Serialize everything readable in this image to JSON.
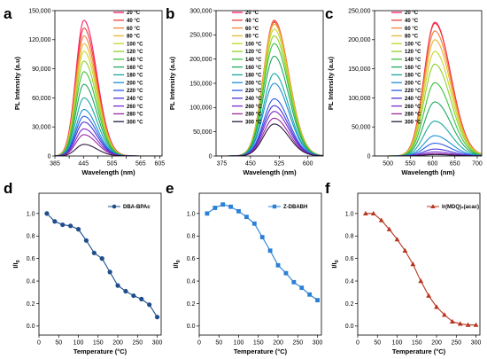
{
  "chart_data": [
    {
      "id": "a",
      "type": "line",
      "letter": "a",
      "xlabel": "Wavelength (nm)",
      "ylabel": "PL Intensity (a.u)",
      "xlim": [
        385,
        610
      ],
      "ylim": [
        0,
        150000
      ],
      "xticks": [
        385,
        415,
        445,
        475,
        505,
        535,
        565,
        595
      ],
      "xtick_labels": [
        "385",
        "",
        "445",
        "",
        "505",
        "",
        "565",
        ""
      ],
      "xtick_labels_extra": {
        "605": "605"
      },
      "yticks": [
        0,
        30000,
        60000,
        90000,
        120000,
        150000
      ],
      "ytick_labels": [
        "0",
        "30,000",
        "60,000",
        "90,000",
        "120,000",
        "150,000"
      ],
      "peak_x": 446,
      "sigma_left": 17,
      "sigma_right": 27,
      "series": [
        {
          "name": "20 °C",
          "color": "#ff1a66",
          "peak": 140000
        },
        {
          "name": "40 °C",
          "color": "#f23a3a",
          "peak": 132000
        },
        {
          "name": "60 °C",
          "color": "#f2803a",
          "peak": 124000
        },
        {
          "name": "80 °C",
          "color": "#e8b830",
          "peak": 116000
        },
        {
          "name": "100 °C",
          "color": "#c6d62a",
          "peak": 108000
        },
        {
          "name": "120 °C",
          "color": "#8fd12a",
          "peak": 98000
        },
        {
          "name": "140 °C",
          "color": "#3cc23c",
          "peak": 87000
        },
        {
          "name": "160 °C",
          "color": "#20a860",
          "peak": 74000
        },
        {
          "name": "180 °C",
          "color": "#1aa8a0",
          "peak": 60000
        },
        {
          "name": "200 °C",
          "color": "#1a90d6",
          "peak": 48000
        },
        {
          "name": "220 °C",
          "color": "#2a5ce6",
          "peak": 41000
        },
        {
          "name": "240 °C",
          "color": "#4630d6",
          "peak": 35000
        },
        {
          "name": "260 °C",
          "color": "#7a2ad0",
          "peak": 28000
        },
        {
          "name": "280 °C",
          "color": "#9a2aa0",
          "peak": 22000
        },
        {
          "name": "300 °C",
          "color": "#2a1a40",
          "peak": 12000
        }
      ]
    },
    {
      "id": "b",
      "type": "line",
      "letter": "b",
      "xlabel": "Wavelength (nm)",
      "ylabel": "PL Intensity (a.u)",
      "xlim": [
        360,
        640
      ],
      "ylim": [
        0,
        300000
      ],
      "xticks": [
        375,
        450,
        525,
        600
      ],
      "xtick_labels": [
        "375",
        "450",
        "525",
        "600"
      ],
      "yticks": [
        0,
        50000,
        100000,
        150000,
        200000,
        250000,
        300000
      ],
      "ytick_labels": [
        "0",
        "50,000",
        "100,000",
        "150,000",
        "200,000",
        "250,000",
        "300,000"
      ],
      "peak_x": 512,
      "sigma_left": 28,
      "sigma_right": 38,
      "series": [
        {
          "name": "20 °C",
          "color": "#ff1a66",
          "peak": 276000
        },
        {
          "name": "40 °C",
          "color": "#f23a3a",
          "peak": 280000
        },
        {
          "name": "60 °C",
          "color": "#f2803a",
          "peak": 278000
        },
        {
          "name": "80 °C",
          "color": "#e8b830",
          "peak": 272000
        },
        {
          "name": "100 °C",
          "color": "#c6d62a",
          "peak": 262000
        },
        {
          "name": "120 °C",
          "color": "#8fd12a",
          "peak": 248000
        },
        {
          "name": "140 °C",
          "color": "#3cc23c",
          "peak": 232000
        },
        {
          "name": "160 °C",
          "color": "#20a860",
          "peak": 206000
        },
        {
          "name": "180 °C",
          "color": "#1aa8a0",
          "peak": 170000
        },
        {
          "name": "200 °C",
          "color": "#1a90d6",
          "peak": 150000
        },
        {
          "name": "220 °C",
          "color": "#2a5ce6",
          "peak": 118000
        },
        {
          "name": "240 °C",
          "color": "#4630d6",
          "peak": 104000
        },
        {
          "name": "260 °C",
          "color": "#7a2ad0",
          "peak": 92000
        },
        {
          "name": "280 °C",
          "color": "#9a2aa0",
          "peak": 78000
        },
        {
          "name": "300 °C",
          "color": "#2a1a40",
          "peak": 66000
        }
      ]
    },
    {
      "id": "c",
      "type": "line",
      "letter": "c",
      "xlabel": "Wavelength (nm)",
      "ylabel": "PL Intensity (a.u)",
      "xlim": [
        470,
        710
      ],
      "ylim": [
        0,
        250000
      ],
      "xticks": [
        500,
        550,
        600,
        650,
        700
      ],
      "xtick_labels": [
        "500",
        "550",
        "600",
        "650",
        "700"
      ],
      "yticks": [
        0,
        50000,
        100000,
        150000,
        200000,
        250000
      ],
      "ytick_labels": [
        "0",
        "50,000",
        "100,000",
        "150,000",
        "200,000",
        "250,000"
      ],
      "peak_x": 605,
      "sigma_left": 24,
      "sigma_right": 36,
      "series": [
        {
          "name": "20 °C",
          "color": "#ff1a66",
          "peak": 230000
        },
        {
          "name": "40 °C",
          "color": "#f23a3a",
          "peak": 228000
        },
        {
          "name": "60 °C",
          "color": "#f2803a",
          "peak": 215000
        },
        {
          "name": "80 °C",
          "color": "#e8b830",
          "peak": 200000
        },
        {
          "name": "100 °C",
          "color": "#c6d62a",
          "peak": 180000
        },
        {
          "name": "120 °C",
          "color": "#8fd12a",
          "peak": 158000
        },
        {
          "name": "140 °C",
          "color": "#3cc23c",
          "peak": 126000
        },
        {
          "name": "160 °C",
          "color": "#20a860",
          "peak": 93000
        },
        {
          "name": "180 °C",
          "color": "#1aa8a0",
          "peak": 60000
        },
        {
          "name": "200 °C",
          "color": "#1a90d6",
          "peak": 35000
        },
        {
          "name": "220 °C",
          "color": "#2a5ce6",
          "peak": 22000
        },
        {
          "name": "240 °C",
          "color": "#4630d6",
          "peak": 12000
        },
        {
          "name": "260 °C",
          "color": "#7a2ad0",
          "peak": 7000
        },
        {
          "name": "280 °C",
          "color": "#9a2aa0",
          "peak": 4000
        },
        {
          "name": "300 °C",
          "color": "#2a1a40",
          "peak": 2500
        }
      ]
    },
    {
      "id": "d",
      "type": "line",
      "letter": "d",
      "xlabel": "Temperature (°C)",
      "ylabel_main": "I/I",
      "ylabel_sub": "0",
      "xlim": [
        0,
        310
      ],
      "ylim": [
        -0.08,
        1.18
      ],
      "xticks": [
        0,
        50,
        100,
        150,
        200,
        250,
        300
      ],
      "yticks": [
        0.0,
        0.2,
        0.4,
        0.6,
        0.8,
        1.0
      ],
      "ytick_labels": [
        "0.0",
        "0.2",
        "0.4",
        "0.6",
        "0.8",
        "1.0"
      ],
      "marker": "circle",
      "color": "#1f4e8c",
      "series": [
        {
          "name": "DBA-BPAc",
          "x": [
            20,
            40,
            60,
            80,
            100,
            120,
            140,
            160,
            180,
            200,
            220,
            240,
            260,
            280,
            300
          ],
          "y": [
            1.0,
            0.93,
            0.9,
            0.89,
            0.86,
            0.76,
            0.65,
            0.6,
            0.48,
            0.36,
            0.31,
            0.27,
            0.24,
            0.19,
            0.08
          ]
        }
      ]
    },
    {
      "id": "e",
      "type": "line",
      "letter": "e",
      "xlabel": "Temperature (°C)",
      "ylabel_main": "I/I",
      "ylabel_sub": "0",
      "xlim": [
        0,
        310
      ],
      "ylim": [
        -0.08,
        1.18
      ],
      "xticks": [
        0,
        50,
        100,
        150,
        200,
        250,
        300
      ],
      "yticks": [
        0.0,
        0.2,
        0.4,
        0.6,
        0.8,
        1.0
      ],
      "ytick_labels": [
        "0.0",
        "0.2",
        "0.4",
        "0.6",
        "0.8",
        "1.0"
      ],
      "marker": "square",
      "color": "#2a7fd6",
      "series": [
        {
          "name": "Z-DBABH",
          "x": [
            20,
            40,
            60,
            80,
            100,
            120,
            140,
            160,
            180,
            200,
            220,
            240,
            260,
            280,
            300
          ],
          "y": [
            1.0,
            1.05,
            1.08,
            1.06,
            1.02,
            0.97,
            0.91,
            0.79,
            0.67,
            0.54,
            0.47,
            0.39,
            0.34,
            0.28,
            0.23
          ]
        }
      ]
    },
    {
      "id": "f",
      "type": "line",
      "letter": "f",
      "xlabel": "Temperature (°C)",
      "ylabel_main": "I/I",
      "ylabel_sub": "0",
      "xlim": [
        0,
        310
      ],
      "ylim": [
        -0.08,
        1.18
      ],
      "xticks": [
        0,
        50,
        100,
        150,
        200,
        250,
        300
      ],
      "yticks": [
        0.0,
        0.2,
        0.4,
        0.6,
        0.8,
        1.0
      ],
      "ytick_labels": [
        "0.0",
        "0.2",
        "0.4",
        "0.6",
        "0.8",
        "1.0"
      ],
      "marker": "triangle",
      "color": "#b5351f",
      "series": [
        {
          "name": "Ir(MDQ)₂(acac)",
          "x": [
            20,
            40,
            60,
            80,
            100,
            120,
            140,
            160,
            180,
            200,
            220,
            240,
            260,
            280,
            300
          ],
          "y": [
            1.0,
            1.0,
            0.94,
            0.86,
            0.77,
            0.67,
            0.55,
            0.4,
            0.27,
            0.17,
            0.1,
            0.04,
            0.02,
            0.01,
            0.01
          ]
        }
      ]
    }
  ]
}
